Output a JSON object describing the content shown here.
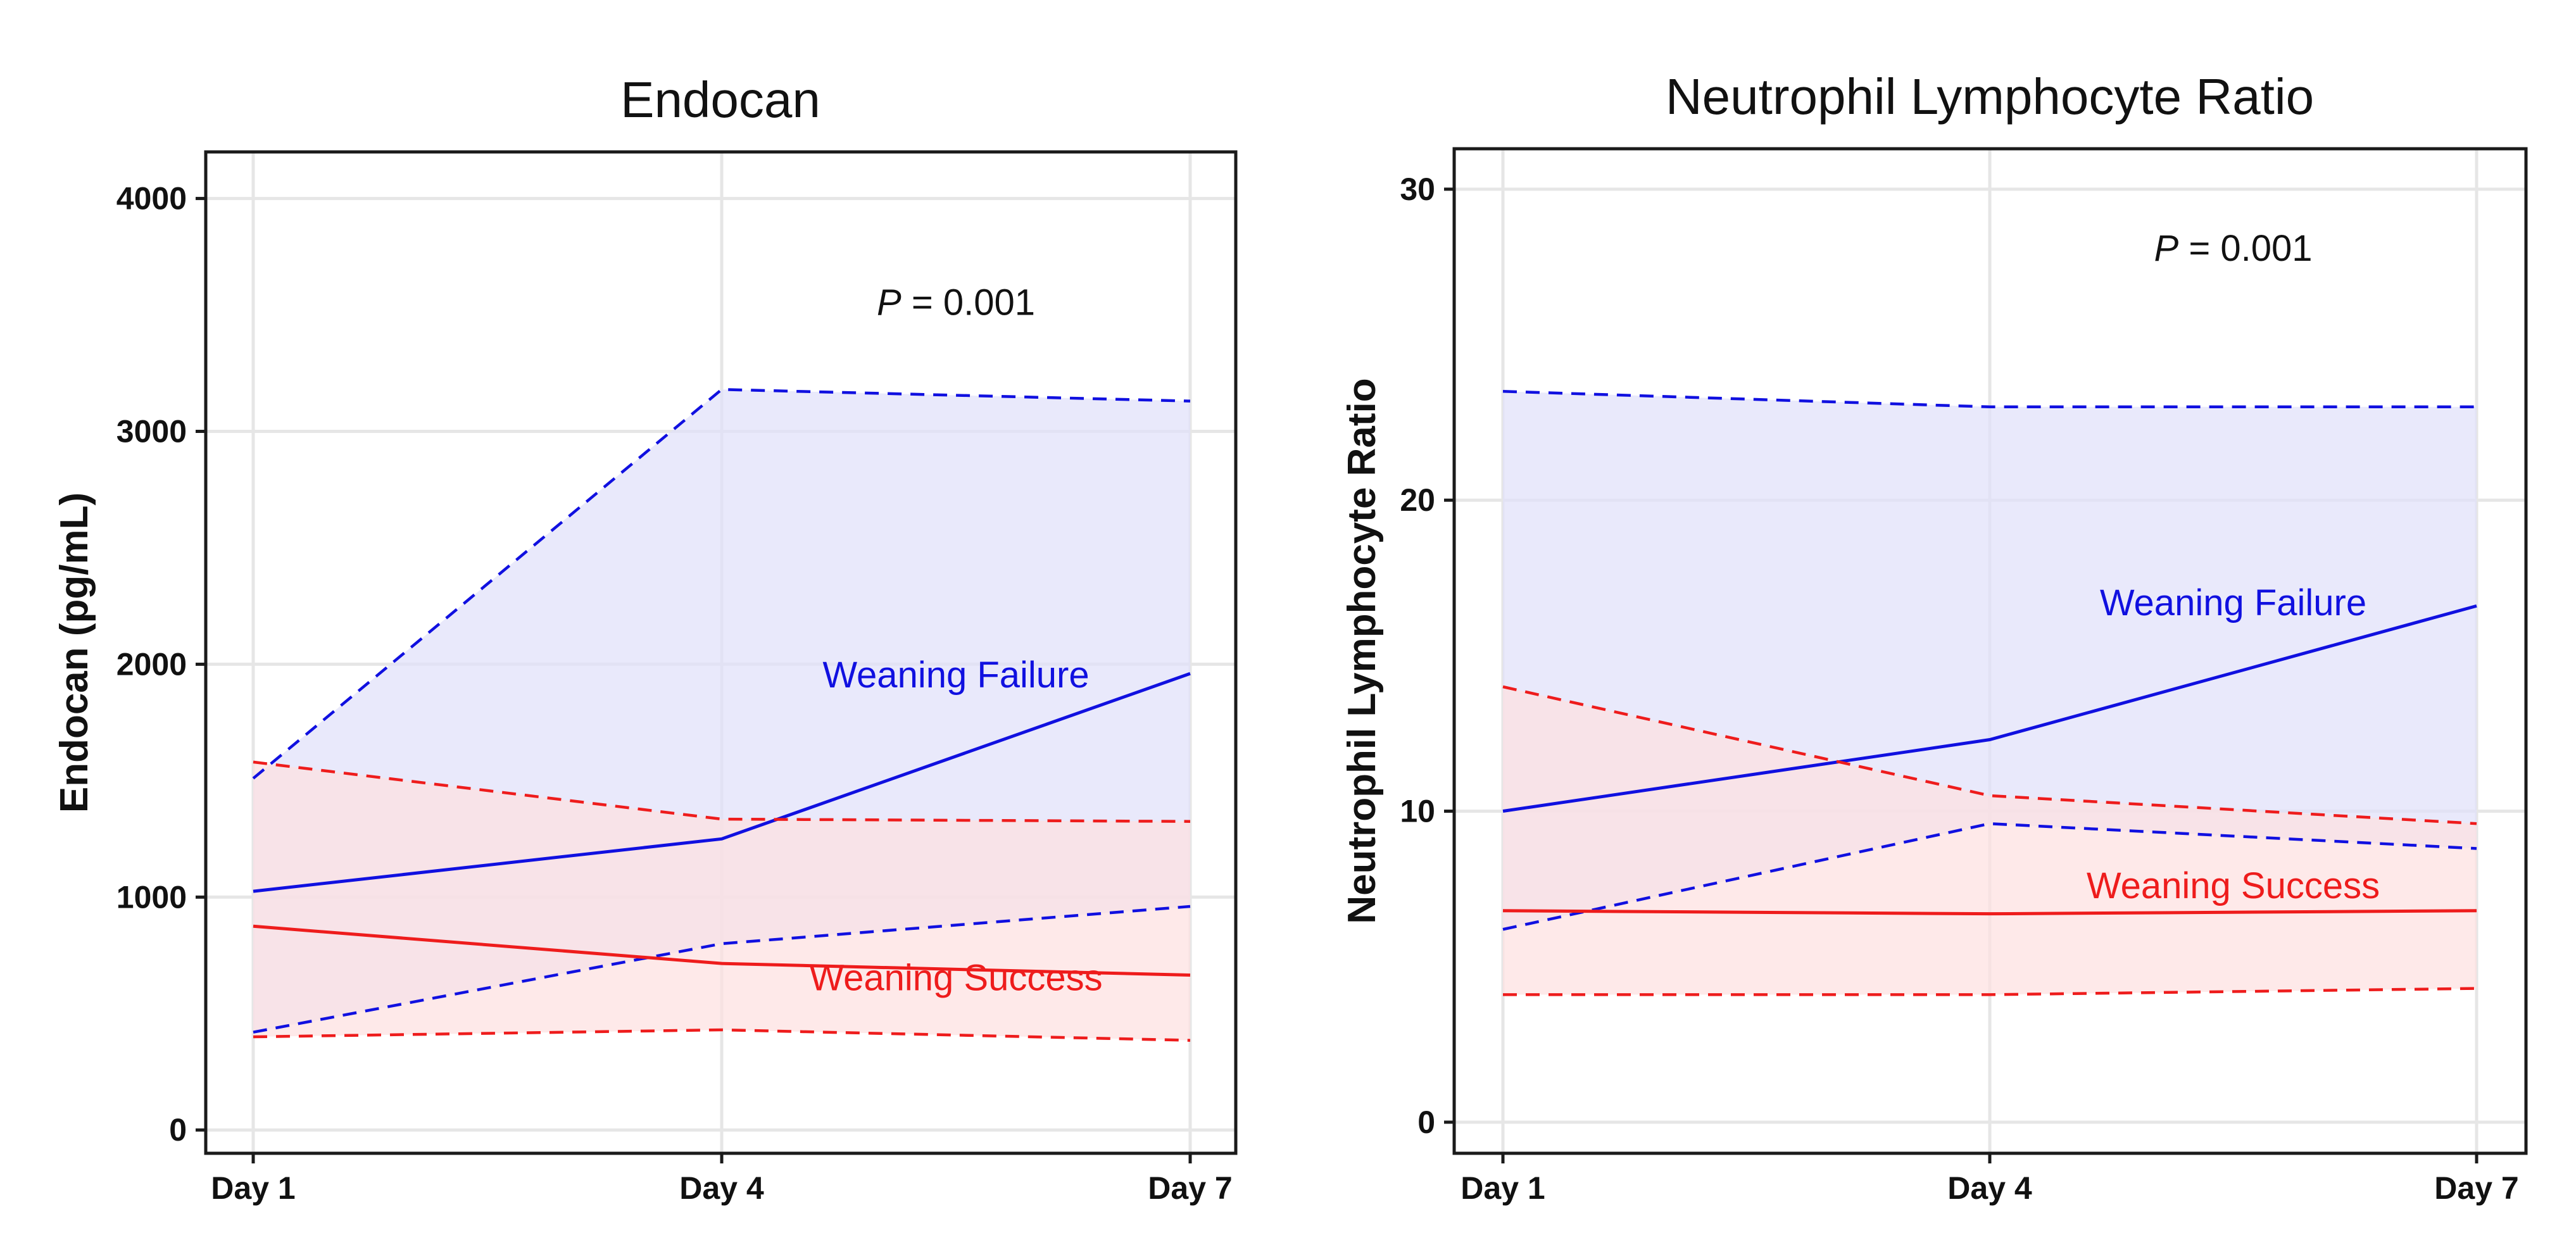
{
  "colors": {
    "failure": "#1010e0",
    "success": "#ee1c1c",
    "failure_band": "#e0e1fa",
    "success_band": "#fde0e1",
    "overlap_band": "#e2cae6",
    "grid": "#e6e6e6",
    "axis": "#1a1a1a"
  },
  "chart_data": [
    {
      "type": "line",
      "title": "Endocan",
      "xlabel": "",
      "ylabel": "Endocan (pg/mL)",
      "categories": [
        "Day 1",
        "Day 4",
        "Day 7"
      ],
      "ylim": [
        -100,
        4200
      ],
      "yticks": [
        0,
        1000,
        2000,
        3000,
        4000
      ],
      "yticklabels": [
        "0",
        "1000",
        "2000",
        "3000",
        "4000"
      ],
      "p_label": "P",
      "p_text": " = 0.001",
      "p_position": [
        1.5,
        3500
      ],
      "series": [
        {
          "name": "Weaning Failure",
          "color_key": "failure",
          "band_key": "failure_band",
          "values": [
            1025,
            1250,
            1960
          ],
          "lower": [
            420,
            800,
            960
          ],
          "upper": [
            1510,
            3180,
            3130
          ],
          "label_position": [
            1.5,
            1900
          ]
        },
        {
          "name": "Weaning Success",
          "color_key": "success",
          "band_key": "success_band",
          "values": [
            875,
            715,
            665
          ],
          "lower": [
            400,
            430,
            385
          ],
          "upper": [
            1580,
            1335,
            1325
          ],
          "label_position": [
            1.5,
            600
          ]
        }
      ]
    },
    {
      "type": "line",
      "title": "Neutrophil Lymphocyte Ratio",
      "xlabel": "",
      "ylabel": "Neutrophil Lymphocyte Ratio",
      "categories": [
        "Day 1",
        "Day 4",
        "Day 7"
      ],
      "ylim": [
        -1.0,
        31.3
      ],
      "yticks": [
        0,
        10,
        20,
        30
      ],
      "yticklabels": [
        "0",
        "10",
        "20",
        "30"
      ],
      "p_label": "P",
      "p_text": " = 0.001",
      "p_position": [
        1.5,
        27.7
      ],
      "series": [
        {
          "name": "Weaning Failure",
          "color_key": "failure",
          "band_key": "failure_band",
          "values": [
            10.0,
            12.3,
            16.6
          ],
          "lower": [
            6.2,
            9.6,
            8.8
          ],
          "upper": [
            23.5,
            23.0,
            23.0
          ],
          "label_position": [
            1.5,
            16.3
          ]
        },
        {
          "name": "Weaning Success",
          "color_key": "success",
          "band_key": "success_band",
          "values": [
            6.8,
            6.7,
            6.8
          ],
          "lower": [
            4.1,
            4.1,
            4.3
          ],
          "upper": [
            14.0,
            10.5,
            9.6
          ],
          "label_position": [
            1.5,
            7.2
          ]
        }
      ]
    }
  ]
}
